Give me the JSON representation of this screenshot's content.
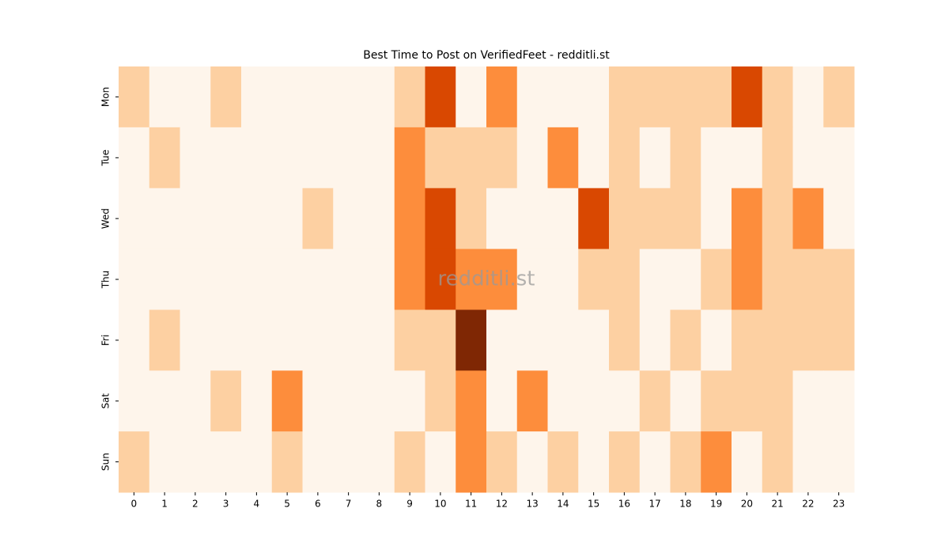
{
  "chart_data": {
    "type": "heatmap",
    "title": "Best Time to Post on VerifiedFeet - redditli.st",
    "watermark": "redditli.st",
    "x": [
      0,
      1,
      2,
      3,
      4,
      5,
      6,
      7,
      8,
      9,
      10,
      11,
      12,
      13,
      14,
      15,
      16,
      17,
      18,
      19,
      20,
      21,
      22,
      23
    ],
    "categories": [
      "Mon",
      "Tue",
      "Wed",
      "Thu",
      "Fri",
      "Sat",
      "Sun"
    ],
    "values": [
      [
        1,
        0,
        0,
        1,
        0,
        0,
        0,
        0,
        0,
        1,
        3,
        0,
        2,
        0,
        0,
        0,
        1,
        1,
        1,
        1,
        3,
        1,
        0,
        1
      ],
      [
        0,
        1,
        0,
        0,
        0,
        0,
        0,
        0,
        0,
        2,
        1,
        1,
        1,
        0,
        2,
        0,
        1,
        0,
        1,
        0,
        0,
        1,
        0,
        0
      ],
      [
        0,
        0,
        0,
        0,
        0,
        0,
        1,
        0,
        0,
        2,
        3,
        1,
        0,
        0,
        0,
        3,
        1,
        1,
        1,
        0,
        2,
        1,
        2,
        0
      ],
      [
        0,
        0,
        0,
        0,
        0,
        0,
        0,
        0,
        0,
        2,
        3,
        2,
        2,
        0,
        0,
        1,
        1,
        0,
        0,
        1,
        2,
        1,
        1,
        1
      ],
      [
        0,
        1,
        0,
        0,
        0,
        0,
        0,
        0,
        0,
        1,
        1,
        4,
        0,
        0,
        0,
        0,
        1,
        0,
        1,
        0,
        1,
        1,
        1,
        1
      ],
      [
        0,
        0,
        0,
        1,
        0,
        2,
        0,
        0,
        0,
        0,
        1,
        2,
        0,
        2,
        0,
        0,
        0,
        1,
        0,
        1,
        1,
        1,
        0,
        0
      ],
      [
        1,
        0,
        0,
        0,
        0,
        1,
        0,
        0,
        0,
        1,
        0,
        2,
        1,
        0,
        1,
        0,
        1,
        0,
        1,
        2,
        0,
        1,
        0,
        0
      ]
    ],
    "clim": [
      0,
      4
    ],
    "colorscale": [
      "#fef5eb",
      "#fdd0a2",
      "#fd8d3c",
      "#d94801",
      "#7f2704"
    ]
  }
}
